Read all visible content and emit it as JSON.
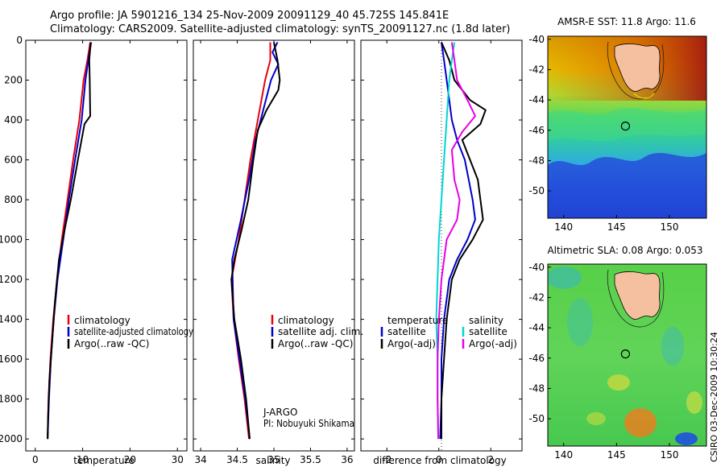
{
  "header": {
    "line1": "Argo profile: JA 5901216_134 25-Nov-2009 20091129_40 45.725S 145.841E",
    "line2": "Climatology: CARS2009. Satellite-adjusted climatology: synTS_20091127.nc (1.8d later)"
  },
  "credit": "CSIRO 03-Dec-2009 10:30:24",
  "colors": {
    "climatology": "#e8000b",
    "satellite": "#0000cc",
    "argo": "#000000",
    "sal_satellite": "#00d6d6",
    "sal_argo": "#e600e6"
  },
  "chart_data": [
    {
      "type": "line",
      "xlabel": "temperature",
      "ylabel": "",
      "xlim": [
        -2,
        32
      ],
      "ylim": [
        2060,
        0
      ],
      "xticks": [
        "0",
        "10",
        "20",
        "30"
      ],
      "xtick_values": [
        0,
        10,
        20,
        30
      ],
      "yticks": [
        "0",
        "200",
        "400",
        "600",
        "800",
        "1000",
        "1200",
        "1400",
        "1600",
        "1800",
        "2000"
      ],
      "ytick_values": [
        0,
        200,
        400,
        600,
        800,
        1000,
        1200,
        1400,
        1600,
        1800,
        2000
      ],
      "legend": [
        "climatology",
        "satellite-adjusted climatology",
        "Argo(..raw -QC)"
      ],
      "series": [
        {
          "name": "climatology",
          "color": "#e8000b",
          "points": [
            [
              11.6,
              10
            ],
            [
              11.0,
              100
            ],
            [
              10.2,
              200
            ],
            [
              9.3,
              400
            ],
            [
              8.0,
              600
            ],
            [
              6.8,
              800
            ],
            [
              5.6,
              1000
            ],
            [
              4.6,
              1200
            ],
            [
              3.8,
              1400
            ],
            [
              3.2,
              1600
            ],
            [
              2.8,
              1800
            ],
            [
              2.6,
              2000
            ]
          ]
        },
        {
          "name": "satellite-adjusted climatology",
          "color": "#0000cc",
          "points": [
            [
              11.8,
              10
            ],
            [
              11.2,
              100
            ],
            [
              10.6,
              200
            ],
            [
              9.8,
              400
            ],
            [
              8.4,
              600
            ],
            [
              7.1,
              800
            ],
            [
              5.9,
              1000
            ],
            [
              4.7,
              1200
            ],
            [
              3.9,
              1400
            ],
            [
              3.3,
              1600
            ],
            [
              2.9,
              1800
            ],
            [
              2.6,
              2000
            ]
          ]
        },
        {
          "name": "Argo(..raw -QC)",
          "color": "#000000",
          "points": [
            [
              11.7,
              10
            ],
            [
              11.4,
              100
            ],
            [
              11.5,
              200
            ],
            [
              11.6,
              380
            ],
            [
              10.4,
              420
            ],
            [
              9.0,
              600
            ],
            [
              7.5,
              800
            ],
            [
              6.2,
              950
            ],
            [
              5.0,
              1100
            ],
            [
              4.2,
              1300
            ],
            [
              3.6,
              1500
            ],
            [
              3.0,
              1700
            ],
            [
              2.7,
              1900
            ],
            [
              2.6,
              2000
            ]
          ]
        }
      ]
    },
    {
      "type": "line",
      "xlabel": "salinity",
      "ylabel": "",
      "xlim": [
        33.9,
        36.1
      ],
      "ylim": [
        2060,
        0
      ],
      "xticks": [
        "34",
        "34.5",
        "35",
        "35.5",
        "36"
      ],
      "xtick_values": [
        34,
        34.5,
        35,
        35.5,
        36
      ],
      "legend": [
        "climatology",
        "satellite adj. clim.",
        "Argo(..raw -QC)"
      ],
      "annotation": [
        "J-ARGO",
        "PI: Nobuyuki Shikama"
      ],
      "series": [
        {
          "name": "climatology",
          "color": "#e8000b",
          "points": [
            [
              34.95,
              10
            ],
            [
              34.95,
              100
            ],
            [
              34.88,
              200
            ],
            [
              34.78,
              400
            ],
            [
              34.68,
              600
            ],
            [
              34.6,
              800
            ],
            [
              34.52,
              1000
            ],
            [
              34.42,
              1200
            ],
            [
              34.45,
              1400
            ],
            [
              34.52,
              1600
            ],
            [
              34.6,
              1800
            ],
            [
              34.66,
              2000
            ]
          ]
        },
        {
          "name": "satellite adj. clim.",
          "color": "#0000cc",
          "points": [
            [
              35.05,
              10
            ],
            [
              34.98,
              60
            ],
            [
              35.06,
              120
            ],
            [
              34.96,
              200
            ],
            [
              34.82,
              400
            ],
            [
              34.75,
              500
            ],
            [
              34.66,
              700
            ],
            [
              34.55,
              900
            ],
            [
              34.43,
              1100
            ],
            [
              34.45,
              1400
            ],
            [
              34.53,
              1600
            ],
            [
              34.61,
              1800
            ],
            [
              34.67,
              2000
            ]
          ]
        },
        {
          "name": "Argo(..raw -QC)",
          "color": "#000000",
          "points": [
            [
              35.0,
              10
            ],
            [
              35.05,
              100
            ],
            [
              35.08,
              200
            ],
            [
              35.06,
              250
            ],
            [
              34.9,
              350
            ],
            [
              34.78,
              450
            ],
            [
              34.72,
              600
            ],
            [
              34.65,
              800
            ],
            [
              34.56,
              950
            ],
            [
              34.46,
              1100
            ],
            [
              34.42,
              1200
            ],
            [
              34.46,
              1400
            ],
            [
              34.55,
              1600
            ],
            [
              34.62,
              1800
            ],
            [
              34.67,
              2000
            ]
          ]
        }
      ]
    },
    {
      "type": "line",
      "xlabel": "difference from climatology",
      "ylabel": "",
      "xlim": [
        -3,
        3.2
      ],
      "ylim": [
        2060,
        0
      ],
      "xticks": [
        "-2",
        "0",
        "2"
      ],
      "xtick_values": [
        -2,
        0,
        2
      ],
      "legend_left": {
        "title": "temperature",
        "items": [
          "satellite",
          "Argo(-adj)"
        ]
      },
      "legend_right": {
        "title": "salinity",
        "items": [
          "satellite",
          "Argo(-adj)"
        ]
      },
      "series": [
        {
          "name": "temperature satellite",
          "color": "#0000cc",
          "points": [
            [
              0.1,
              10
            ],
            [
              0.2,
              100
            ],
            [
              0.3,
              200
            ],
            [
              0.4,
              300
            ],
            [
              0.5,
              400
            ],
            [
              0.7,
              500
            ],
            [
              1.0,
              600
            ],
            [
              1.3,
              800
            ],
            [
              1.4,
              900
            ],
            [
              1.1,
              1000
            ],
            [
              0.7,
              1100
            ],
            [
              0.4,
              1200
            ],
            [
              0.2,
              1400
            ],
            [
              0.1,
              1600
            ],
            [
              0.1,
              1800
            ],
            [
              0.05,
              2000
            ]
          ]
        },
        {
          "name": "temperature Argo(-adj)",
          "color": "#000000",
          "points": [
            [
              0.1,
              10
            ],
            [
              0.4,
              100
            ],
            [
              0.6,
              200
            ],
            [
              1.2,
              300
            ],
            [
              1.8,
              350
            ],
            [
              1.6,
              420
            ],
            [
              0.9,
              500
            ],
            [
              1.2,
              600
            ],
            [
              1.5,
              700
            ],
            [
              1.6,
              800
            ],
            [
              1.7,
              900
            ],
            [
              1.3,
              1000
            ],
            [
              0.8,
              1100
            ],
            [
              0.5,
              1200
            ],
            [
              0.3,
              1400
            ],
            [
              0.2,
              1600
            ],
            [
              0.1,
              1800
            ],
            [
              0.1,
              2000
            ]
          ]
        },
        {
          "name": "salinity satellite",
          "color": "#00d6d6",
          "points": [
            [
              0.6,
              10
            ],
            [
              0.5,
              100
            ],
            [
              0.4,
              200
            ],
            [
              0.3,
              400
            ],
            [
              0.2,
              600
            ],
            [
              0.1,
              800
            ],
            [
              0.0,
              1000
            ],
            [
              -0.05,
              1200
            ],
            [
              -0.1,
              1400
            ],
            [
              -0.05,
              1600
            ],
            [
              -0.05,
              1800
            ],
            [
              -0.02,
              2000
            ]
          ]
        },
        {
          "name": "salinity Argo(-adj)",
          "color": "#e600e6",
          "points": [
            [
              0.5,
              10
            ],
            [
              0.6,
              100
            ],
            [
              0.7,
              200
            ],
            [
              1.1,
              300
            ],
            [
              1.4,
              380
            ],
            [
              0.9,
              460
            ],
            [
              0.5,
              550
            ],
            [
              0.6,
              700
            ],
            [
              0.8,
              800
            ],
            [
              0.7,
              900
            ],
            [
              0.3,
              1000
            ],
            [
              0.1,
              1200
            ],
            [
              0.0,
              1400
            ],
            [
              -0.05,
              1600
            ],
            [
              -0.05,
              1800
            ],
            [
              -0.02,
              2000
            ]
          ]
        }
      ]
    },
    {
      "type": "heatmap",
      "title": "AMSR-E SST: 11.8 Argo: 11.6",
      "xlim": [
        138.5,
        153.5
      ],
      "ylim": [
        -51.8,
        -39.8
      ],
      "xticks": [
        "140",
        "145",
        "150"
      ],
      "xtick_values": [
        140,
        145,
        150
      ],
      "yticks": [
        "-40",
        "-42",
        "-44",
        "-46",
        "-48",
        "-50"
      ],
      "ytick_values": [
        -40,
        -42,
        -44,
        -46,
        -48,
        -50
      ],
      "marker": {
        "lon": 145.841,
        "lat": -45.725
      }
    },
    {
      "type": "heatmap",
      "title": "Altimetric SLA: 0.08 Argo: 0.053",
      "xlim": [
        138.5,
        153.5
      ],
      "ylim": [
        -51.8,
        -39.8
      ],
      "xticks": [
        "140",
        "145",
        "150"
      ],
      "xtick_values": [
        140,
        145,
        150
      ],
      "yticks": [
        "-40",
        "-42",
        "-44",
        "-46",
        "-48",
        "-50"
      ],
      "ytick_values": [
        -40,
        -42,
        -44,
        -46,
        -48,
        -50
      ],
      "marker": {
        "lon": 145.841,
        "lat": -45.725
      }
    }
  ]
}
